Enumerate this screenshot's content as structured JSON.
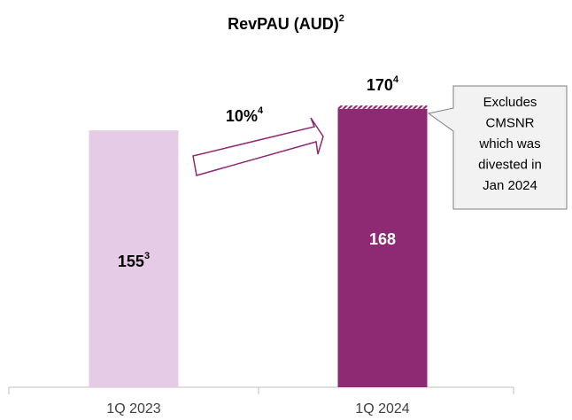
{
  "chart_data": {
    "type": "bar",
    "title": "RevPAU (AUD)",
    "title_note": "2",
    "categories": [
      "1Q 2023",
      "1Q 2024"
    ],
    "series": [
      {
        "colors": [
          "#e6cbe6",
          "#8e2a73"
        ],
        "values": [
          155,
          168
        ],
        "value_labels": [
          "155",
          "168"
        ],
        "value_label_notes": [
          "3",
          null
        ],
        "value_label_colors": [
          "#000000",
          "#ffffff"
        ]
      },
      {
        "color": "#8e2a73",
        "hatch": true,
        "values": [
          null,
          2
        ]
      }
    ],
    "totals": [
      null,
      170
    ],
    "total_notes": [
      null,
      "4"
    ],
    "ylim": [
      0,
      200
    ],
    "annotations": [
      {
        "text": "10%",
        "note": "4"
      },
      {
        "lines": [
          "Excludes",
          "CMSNR",
          "which was",
          "divested in",
          "Jan 2024"
        ]
      }
    ]
  }
}
